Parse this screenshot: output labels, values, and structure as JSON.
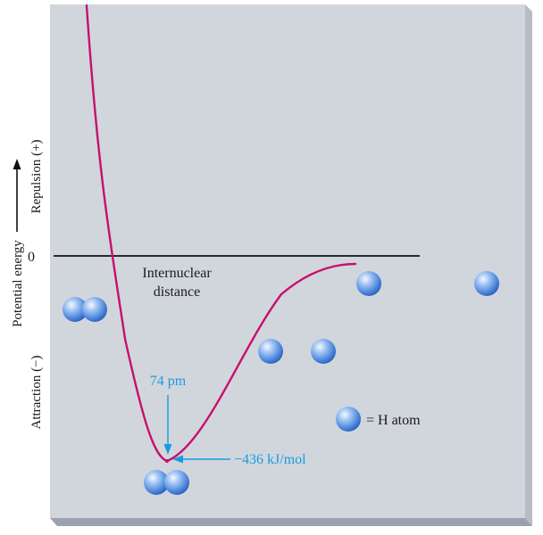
{
  "chart_data": {
    "type": "line",
    "title": "",
    "xlabel": "Internuclear distance",
    "ylabel": "Potential energy",
    "y_zero_label": "0",
    "y_positive_label": "Repulsion (+)",
    "y_negative_label": "Attraction (−)",
    "series": [
      {
        "x": [
          0,
          50,
          70,
          74,
          85,
          100,
          150,
          200,
          250
        ],
        "y": [
          800,
          80,
          -360,
          -436,
          -420,
          -320,
          -120,
          -30,
          -10
        ]
      }
    ],
    "ylim": [
      -560,
      1000
    ],
    "minimum": {
      "x": 74,
      "y": -436
    },
    "annotations": {
      "bond_length": "74 pm",
      "bond_energy": "−436 kJ/mol",
      "legend": "= H atom"
    }
  },
  "colors": {
    "panel": "#d1d6dd",
    "curve": "#c6106e",
    "annotation": "#1a9be0",
    "atom": "#4d87dd",
    "axis": "#111111"
  }
}
